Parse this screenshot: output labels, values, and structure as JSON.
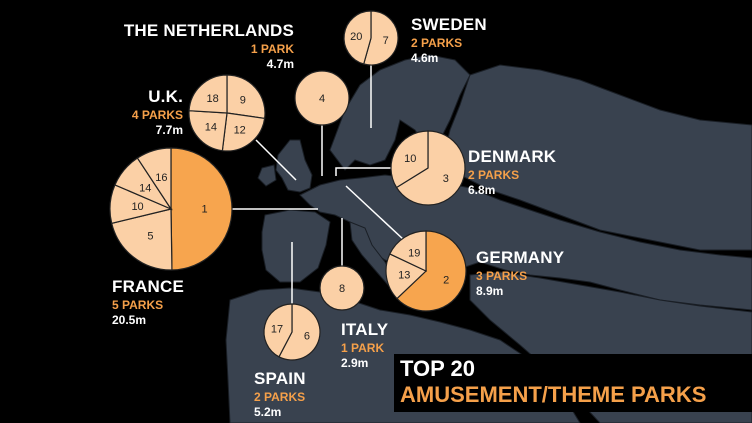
{
  "colors": {
    "background": "#000000",
    "land": "#39424f",
    "border": "#1a1f26",
    "highlight_slice": "#f7a54e",
    "slice": "#fbd0a6",
    "text_white": "#ffffff",
    "text_orange": "#f5a04a"
  },
  "title": {
    "line1": "TOP 20",
    "line2": "AMUSEMENT/THEME PARKS"
  },
  "labels": {
    "netherlands": {
      "name": "THE NETHERLANDS",
      "parks": "1 PARK",
      "visitors": "4.7m"
    },
    "sweden": {
      "name": "SWEDEN",
      "parks": "2 PARKS",
      "visitors": "4.6m"
    },
    "uk": {
      "name": "U.K.",
      "parks": "4 PARKS",
      "visitors": "7.7m"
    },
    "denmark": {
      "name": "DENMARK",
      "parks": "2 PARKS",
      "visitors": "6.8m"
    },
    "germany": {
      "name": "GERMANY",
      "parks": "3 PARKS",
      "visitors": "8.9m"
    },
    "france": {
      "name": "FRANCE",
      "parks": "5 PARKS",
      "visitors": "20.5m"
    },
    "italy": {
      "name": "ITALY",
      "parks": "1 PARK",
      "visitors": "2.9m"
    },
    "spain": {
      "name": "SPAIN",
      "parks": "2 PARKS",
      "visitors": "5.2m"
    }
  },
  "chart_data": {
    "type": "pie",
    "title": "TOP 20 AMUSEMENT/THEME PARKS",
    "pies": [
      {
        "country": "THE NETHERLANDS",
        "total_visitors_millions": 4.7,
        "slices": [
          {
            "label": "4",
            "value": 4.7
          }
        ]
      },
      {
        "country": "SWEDEN",
        "total_visitors_millions": 4.6,
        "slices": [
          {
            "label": "7",
            "value": 2.5
          },
          {
            "label": "20",
            "value": 2.1
          }
        ]
      },
      {
        "country": "U.K.",
        "total_visitors_millions": 7.7,
        "slices": [
          {
            "label": "9",
            "value": 2.1
          },
          {
            "label": "12",
            "value": 1.9
          },
          {
            "label": "14",
            "value": 1.85
          },
          {
            "label": "18",
            "value": 1.85
          }
        ]
      },
      {
        "country": "DENMARK",
        "total_visitors_millions": 6.8,
        "slices": [
          {
            "label": "3",
            "value": 4.5
          },
          {
            "label": "10",
            "value": 2.3
          }
        ]
      },
      {
        "country": "GERMANY",
        "total_visitors_millions": 8.9,
        "slices": [
          {
            "label": "2",
            "value": 5.6
          },
          {
            "label": "13",
            "value": 1.7
          },
          {
            "label": "19",
            "value": 1.6
          }
        ]
      },
      {
        "country": "FRANCE",
        "total_visitors_millions": 20.5,
        "slices": [
          {
            "label": "1",
            "value": 10.2
          },
          {
            "label": "5",
            "value": 4.4
          },
          {
            "label": "10",
            "value": 2.1
          },
          {
            "label": "14",
            "value": 1.9
          },
          {
            "label": "16",
            "value": 1.9
          }
        ]
      },
      {
        "country": "ITALY",
        "total_visitors_millions": 2.9,
        "slices": [
          {
            "label": "8",
            "value": 2.9
          }
        ]
      },
      {
        "country": "SPAIN",
        "total_visitors_millions": 5.2,
        "slices": [
          {
            "label": "6",
            "value": 3.0
          },
          {
            "label": "17",
            "value": 2.2
          }
        ]
      }
    ]
  }
}
